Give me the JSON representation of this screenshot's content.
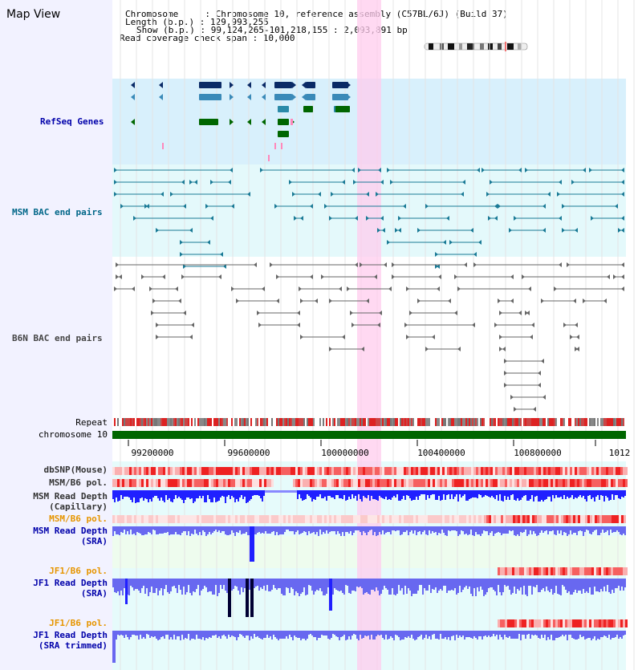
{
  "view_title": "Map View",
  "info": {
    "line1": "Chromosome     : Chromosome 10, reference assembly (C57BL/6J) (Build 37)",
    "line2": "Length (b.p.) : 129,993,255",
    "line3": "Show (b.p.) : 99,124,265-101,218,155 : 2,093,891 bp",
    "line4": "Read coverage check span : 10,000"
  },
  "tracks": {
    "refseq": {
      "label": "RefSeq Genes",
      "color": "#0000aa"
    },
    "msm_bac": {
      "label": "MSM BAC end pairs",
      "color": "#006688"
    },
    "b6n_bac": {
      "label": "B6N BAC end pairs",
      "color": "#444444"
    },
    "repeat": {
      "label": "Repeat"
    },
    "chromosome": {
      "label": "chromosome 10"
    },
    "dbsnp": {
      "label": "dbSNP(Mouse)"
    },
    "msm_b6_pol": {
      "label": "MSM/B6 pol."
    },
    "msm_depth_cap": {
      "label1": "MSM Read Depth",
      "label2": "(Capillary)"
    },
    "msm_b6_pol2": {
      "label": "MSM/B6 pol."
    },
    "msm_depth_sra": {
      "label1": "MSM Read Depth",
      "label2": "(SRA)"
    },
    "jf1_b6_pol": {
      "label": "JF1/B6 pol."
    },
    "jf1_depth_sra": {
      "label1": "JF1 Read Depth",
      "label2": "(SRA)"
    },
    "jf1_b6_pol2": {
      "label": "JF1/B6 pol."
    },
    "jf1_depth_trim": {
      "label1": "JF1 Read Depth",
      "label2": "(SRA trimmed)"
    }
  },
  "axis": {
    "ticks": [
      "99200000",
      "99600000",
      "100000000",
      "100400000",
      "100800000",
      "1012"
    ]
  },
  "colors": {
    "highlight": "#ffccee",
    "gene_dark": "#0a2a66",
    "gene_mid": "#3a8ab8",
    "gene_teal": "#2a8aa8",
    "gene_green": "#006600",
    "gene_pink": "#ff88bb",
    "refseq_bg": "#d8f0fc",
    "msm_bg": "#e4f9fb",
    "depth_blue": "#2020ff",
    "depth_light": "#6868f0",
    "dark_spike": "#000033",
    "label_orange": "#e69500",
    "label_blue": "#0000aa",
    "label_dark": "#333333"
  }
}
